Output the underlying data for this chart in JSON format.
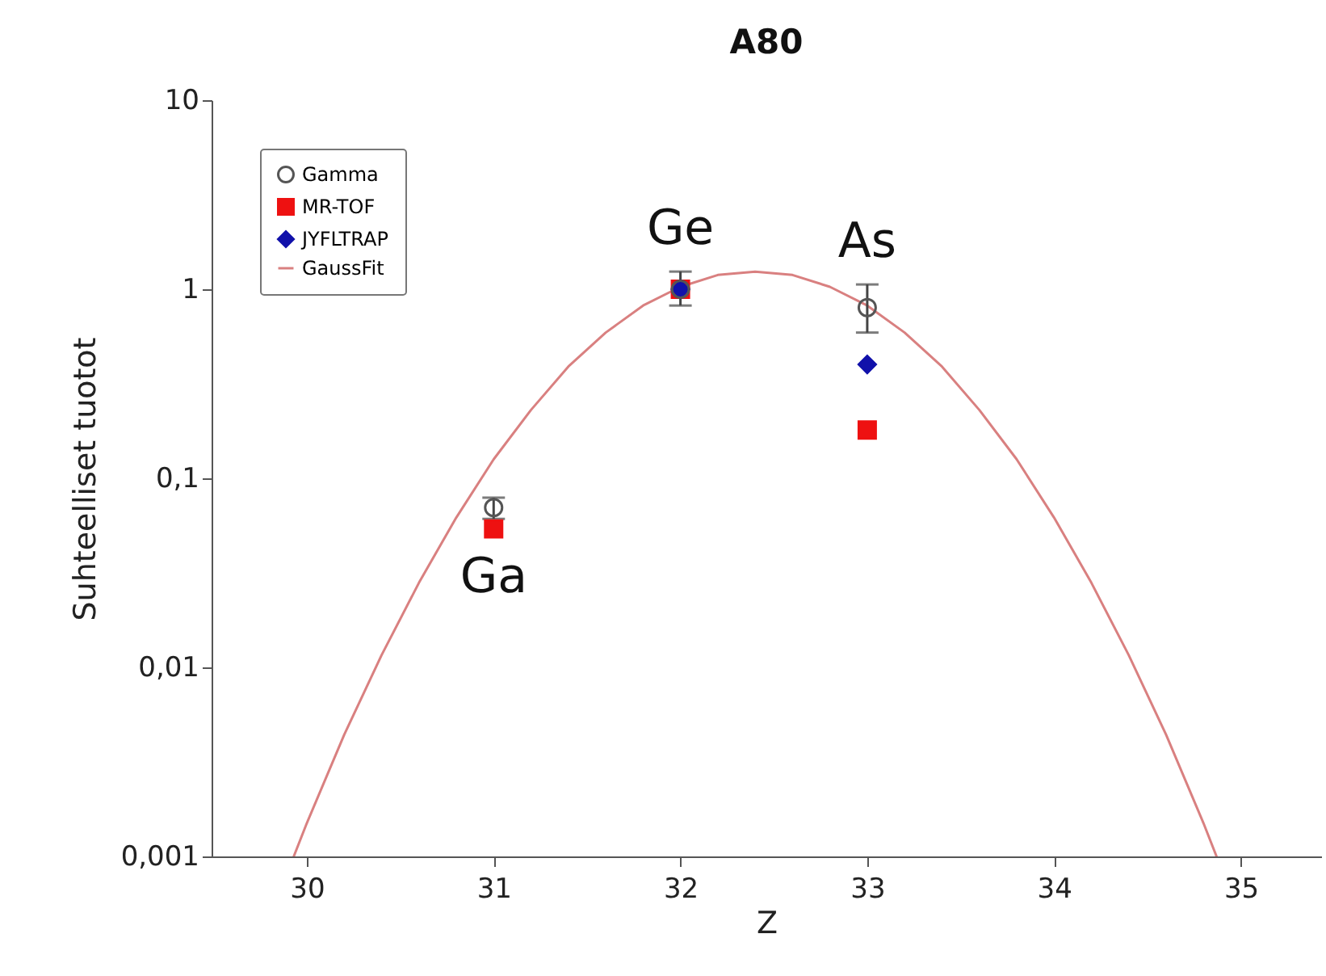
{
  "chart_data": {
    "type": "scatter",
    "title": "A80",
    "xlabel": "Z",
    "ylabel": "Suhteelliset tuotot",
    "x": [
      31,
      32,
      33
    ],
    "series": [
      {
        "name": "Gamma",
        "color": "#555555",
        "marker": "circle",
        "values": [
          0.07,
          1.0,
          0.8
        ],
        "errors": [
          [
            0.061,
            0.079
          ],
          [
            0.82,
            1.24
          ],
          [
            0.59,
            1.06
          ]
        ]
      },
      {
        "name": "MR-TOF",
        "color": "#ee1111",
        "marker": "square",
        "values": [
          0.054,
          1.0,
          0.18
        ]
      },
      {
        "name": "JYFLTRAP",
        "color": "#1111aa",
        "marker": "diamond",
        "values": [
          null,
          1.0,
          0.4
        ]
      },
      {
        "name": "GaussFit",
        "type": "line",
        "color": "#d98080",
        "marker": "none",
        "line_style": "solid",
        "x": [
          29.93,
          30.0,
          30.2,
          30.4,
          30.6,
          30.8,
          31.0,
          31.2,
          31.4,
          31.6,
          31.8,
          32.0,
          32.2,
          32.4,
          32.6,
          32.8,
          33.0,
          33.2,
          33.4,
          33.6,
          33.8,
          34.0,
          34.2,
          34.4,
          34.6,
          34.8,
          34.87
        ],
        "values": [
          0.001,
          0.0015,
          0.0044,
          0.0116,
          0.028,
          0.062,
          0.126,
          0.23,
          0.39,
          0.59,
          0.82,
          1.03,
          1.19,
          1.24,
          1.19,
          1.03,
          0.82,
          0.59,
          0.39,
          0.23,
          0.126,
          0.062,
          0.028,
          0.0116,
          0.0044,
          0.0015,
          0.001
        ]
      }
    ],
    "annotations": [
      "Ga",
      "Ge",
      "As"
    ],
    "log": "y",
    "xlim": [
      29.49,
      35.43
    ],
    "xticks": [
      30,
      31,
      32,
      33,
      34,
      35
    ],
    "ylim": [
      0.001,
      10
    ],
    "yticks": [
      {
        "value": 0.001,
        "label": "0,001"
      },
      {
        "value": 0.01,
        "label": "0,01"
      },
      {
        "value": 0.1,
        "label": "0,1"
      },
      1,
      10
    ],
    "grid": false,
    "legend": "top left"
  }
}
